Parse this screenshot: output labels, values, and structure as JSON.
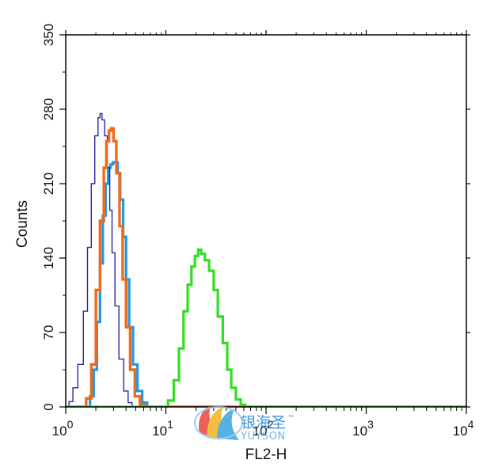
{
  "chart_data": {
    "type": "histogram",
    "xlabel": "FL2-H",
    "ylabel": "Counts",
    "x_scale": "log",
    "xlim": [
      1,
      10000
    ],
    "ylim": [
      0,
      350
    ],
    "grid": false,
    "x_ticks": [
      {
        "value": 1,
        "base": "10",
        "exp": "0"
      },
      {
        "value": 10,
        "base": "10",
        "exp": "1"
      },
      {
        "value": 100,
        "base": "10",
        "exp": "2"
      },
      {
        "value": 1000,
        "base": "10",
        "exp": "3"
      },
      {
        "value": 10000,
        "base": "10",
        "exp": "4"
      }
    ],
    "y_ticks": [
      {
        "value": 0,
        "label": "0"
      },
      {
        "value": 70,
        "label": "70"
      },
      {
        "value": 140,
        "label": "140"
      },
      {
        "value": 210,
        "label": "210"
      },
      {
        "value": 280,
        "label": "280"
      },
      {
        "value": 350,
        "label": "350"
      }
    ],
    "series": [
      {
        "color": "#1a9be6",
        "stroke_width": 3.2,
        "points": [
          [
            1.0,
            0
          ],
          [
            1.5,
            0
          ],
          [
            1.75,
            10
          ],
          [
            1.9,
            35
          ],
          [
            2.05,
            80
          ],
          [
            2.2,
            135
          ],
          [
            2.35,
            180
          ],
          [
            2.5,
            210
          ],
          [
            2.65,
            225
          ],
          [
            2.8,
            228
          ],
          [
            2.95,
            230
          ],
          [
            3.1,
            230
          ],
          [
            3.3,
            220
          ],
          [
            3.5,
            195
          ],
          [
            3.75,
            160
          ],
          [
            4.0,
            120
          ],
          [
            4.3,
            75
          ],
          [
            4.7,
            40
          ],
          [
            5.2,
            15
          ],
          [
            5.8,
            4
          ],
          [
            6.5,
            0
          ],
          [
            10000,
            0
          ]
        ]
      },
      {
        "color": "#2626a6",
        "stroke_width": 1.4,
        "points": [
          [
            1.0,
            0
          ],
          [
            1.08,
            5
          ],
          [
            1.18,
            18
          ],
          [
            1.32,
            40
          ],
          [
            1.5,
            90
          ],
          [
            1.65,
            150
          ],
          [
            1.8,
            210
          ],
          [
            1.95,
            255
          ],
          [
            2.1,
            272
          ],
          [
            2.2,
            276
          ],
          [
            2.3,
            270
          ],
          [
            2.45,
            255
          ],
          [
            2.6,
            225
          ],
          [
            2.75,
            185
          ],
          [
            2.9,
            145
          ],
          [
            3.1,
            95
          ],
          [
            3.4,
            45
          ],
          [
            3.8,
            15
          ],
          [
            4.2,
            4
          ],
          [
            4.6,
            0
          ],
          [
            10000,
            0
          ]
        ]
      },
      {
        "color": "#f06a1a",
        "stroke_width": 3.4,
        "points": [
          [
            1.0,
            0
          ],
          [
            1.4,
            0
          ],
          [
            1.6,
            8
          ],
          [
            1.8,
            40
          ],
          [
            2.0,
            110
          ],
          [
            2.2,
            175
          ],
          [
            2.4,
            225
          ],
          [
            2.55,
            250
          ],
          [
            2.7,
            260
          ],
          [
            2.85,
            262
          ],
          [
            3.0,
            250
          ],
          [
            3.2,
            220
          ],
          [
            3.45,
            170
          ],
          [
            3.7,
            120
          ],
          [
            4.0,
            75
          ],
          [
            4.4,
            35
          ],
          [
            4.9,
            10
          ],
          [
            5.5,
            2
          ],
          [
            6.2,
            0
          ],
          [
            10000,
            0
          ]
        ]
      },
      {
        "color": "#33dd22",
        "stroke_width": 3.2,
        "points": [
          [
            1.0,
            0
          ],
          [
            8.0,
            0
          ],
          [
            10.5,
            6
          ],
          [
            12.0,
            25
          ],
          [
            13.5,
            55
          ],
          [
            15.0,
            90
          ],
          [
            16.5,
            115
          ],
          [
            18.0,
            132
          ],
          [
            19.5,
            142
          ],
          [
            21.0,
            148
          ],
          [
            22.5,
            144
          ],
          [
            24.5,
            138
          ],
          [
            27.0,
            128
          ],
          [
            30.0,
            110
          ],
          [
            33.0,
            85
          ],
          [
            37.0,
            60
          ],
          [
            41.0,
            35
          ],
          [
            45.0,
            18
          ],
          [
            50.0,
            7
          ],
          [
            56.0,
            2
          ],
          [
            62.0,
            0
          ],
          [
            10000,
            0
          ]
        ]
      }
    ]
  },
  "watermark": {
    "brand_cn": "银海圣",
    "tm": "™",
    "brand_en": "YUYSON"
  }
}
